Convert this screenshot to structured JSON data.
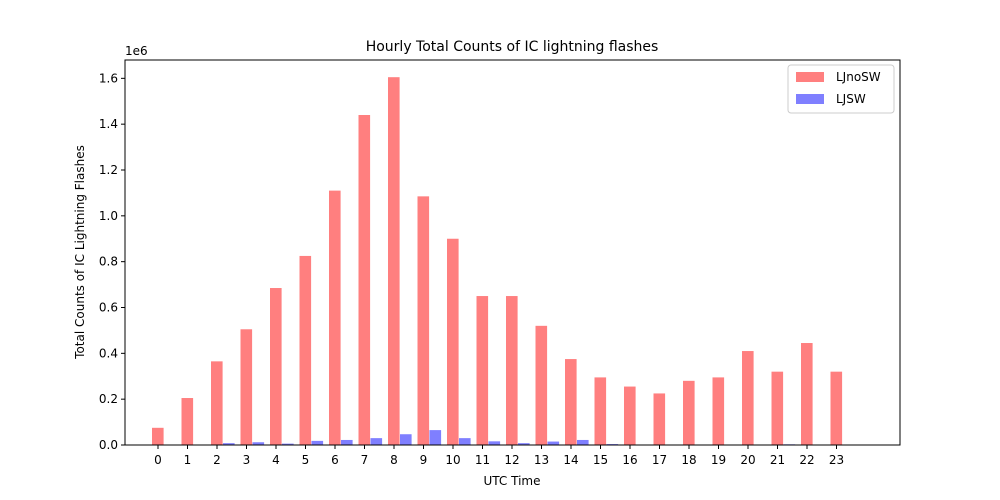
{
  "chart_data": {
    "type": "bar",
    "title": "Hourly Total Counts of IC lightning flashes",
    "xlabel": "UTC Time",
    "ylabel": "Total Counts of IC Lightning Flashes",
    "y_multiplier_label": "1e6",
    "categories": [
      "0",
      "1",
      "2",
      "3",
      "4",
      "5",
      "6",
      "7",
      "8",
      "9",
      "10",
      "11",
      "12",
      "13",
      "14",
      "15",
      "16",
      "17",
      "18",
      "19",
      "20",
      "21",
      "22",
      "23"
    ],
    "ylim": [
      0,
      1.68
    ],
    "yticks": [
      "0.0",
      "0.2",
      "0.4",
      "0.6",
      "0.8",
      "1.0",
      "1.2",
      "1.4",
      "1.6"
    ],
    "legend_position": "top-right",
    "grid": false,
    "series": [
      {
        "name": "LJnoSW",
        "color": "#ff7f7f",
        "values": [
          0.075,
          0.205,
          0.365,
          0.505,
          0.685,
          0.825,
          1.11,
          1.44,
          1.605,
          1.085,
          0.9,
          0.65,
          0.65,
          0.52,
          0.375,
          0.295,
          0.255,
          0.225,
          0.28,
          0.295,
          0.41,
          0.32,
          0.445,
          0.32
        ]
      },
      {
        "name": "LJSW",
        "color": "#7f7fff",
        "values": [
          0.0,
          0.0,
          0.008,
          0.012,
          0.006,
          0.018,
          0.022,
          0.03,
          0.047,
          0.065,
          0.03,
          0.016,
          0.008,
          0.015,
          0.022,
          0.004,
          0.0,
          0.0,
          0.0,
          0.0,
          0.0,
          0.003,
          0.0,
          0.0
        ]
      }
    ]
  }
}
